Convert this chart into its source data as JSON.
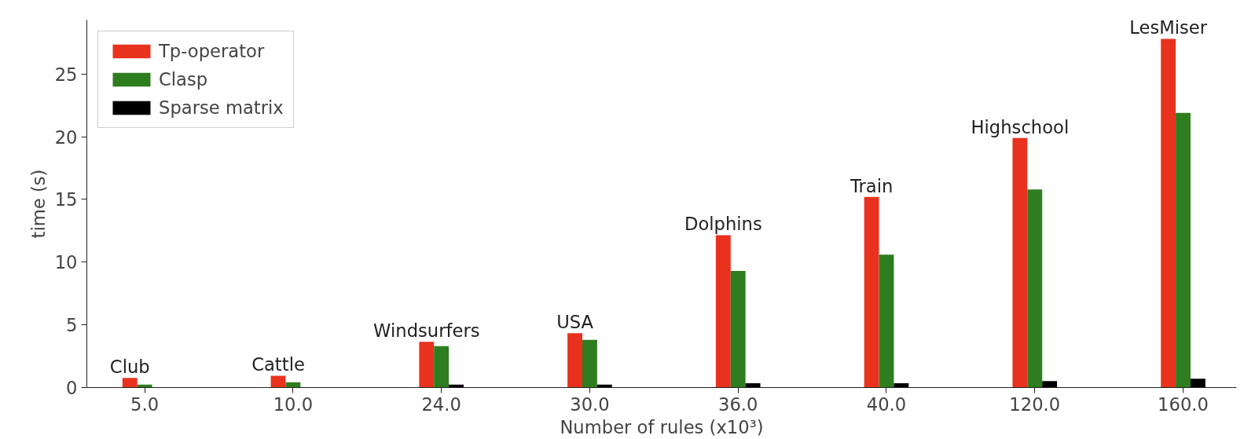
{
  "chart_data": {
    "type": "bar",
    "xlabel": "Number of rules (x10³)",
    "ylabel": "time (s)",
    "categories": [
      "5.0",
      "10.0",
      "24.0",
      "30.0",
      "36.0",
      "40.0",
      "120.0",
      "160.0"
    ],
    "series": [
      {
        "name": "Tp-operator",
        "color": "#e8321e",
        "values": [
          0.76,
          0.94,
          3.65,
          4.34,
          12.15,
          15.2,
          19.9,
          27.8
        ]
      },
      {
        "name": "Clasp",
        "color": "#2e7d1e",
        "values": [
          0.24,
          0.42,
          3.3,
          3.8,
          9.3,
          10.6,
          15.8,
          21.9
        ]
      },
      {
        "name": "Sparse matrix",
        "color": "#000000",
        "values": [
          0.0,
          0.02,
          0.24,
          0.24,
          0.35,
          0.35,
          0.52,
          0.7
        ]
      }
    ],
    "annotations": [
      "Club",
      "Cattle",
      "Windsurfers",
      "USA",
      "Dolphins",
      "Train",
      "Highschool",
      "LesMiser"
    ],
    "ylim": [
      0,
      29.3
    ],
    "yticks": [
      0,
      5,
      10,
      15,
      20,
      25
    ],
    "grid": false,
    "legend": "top left"
  }
}
